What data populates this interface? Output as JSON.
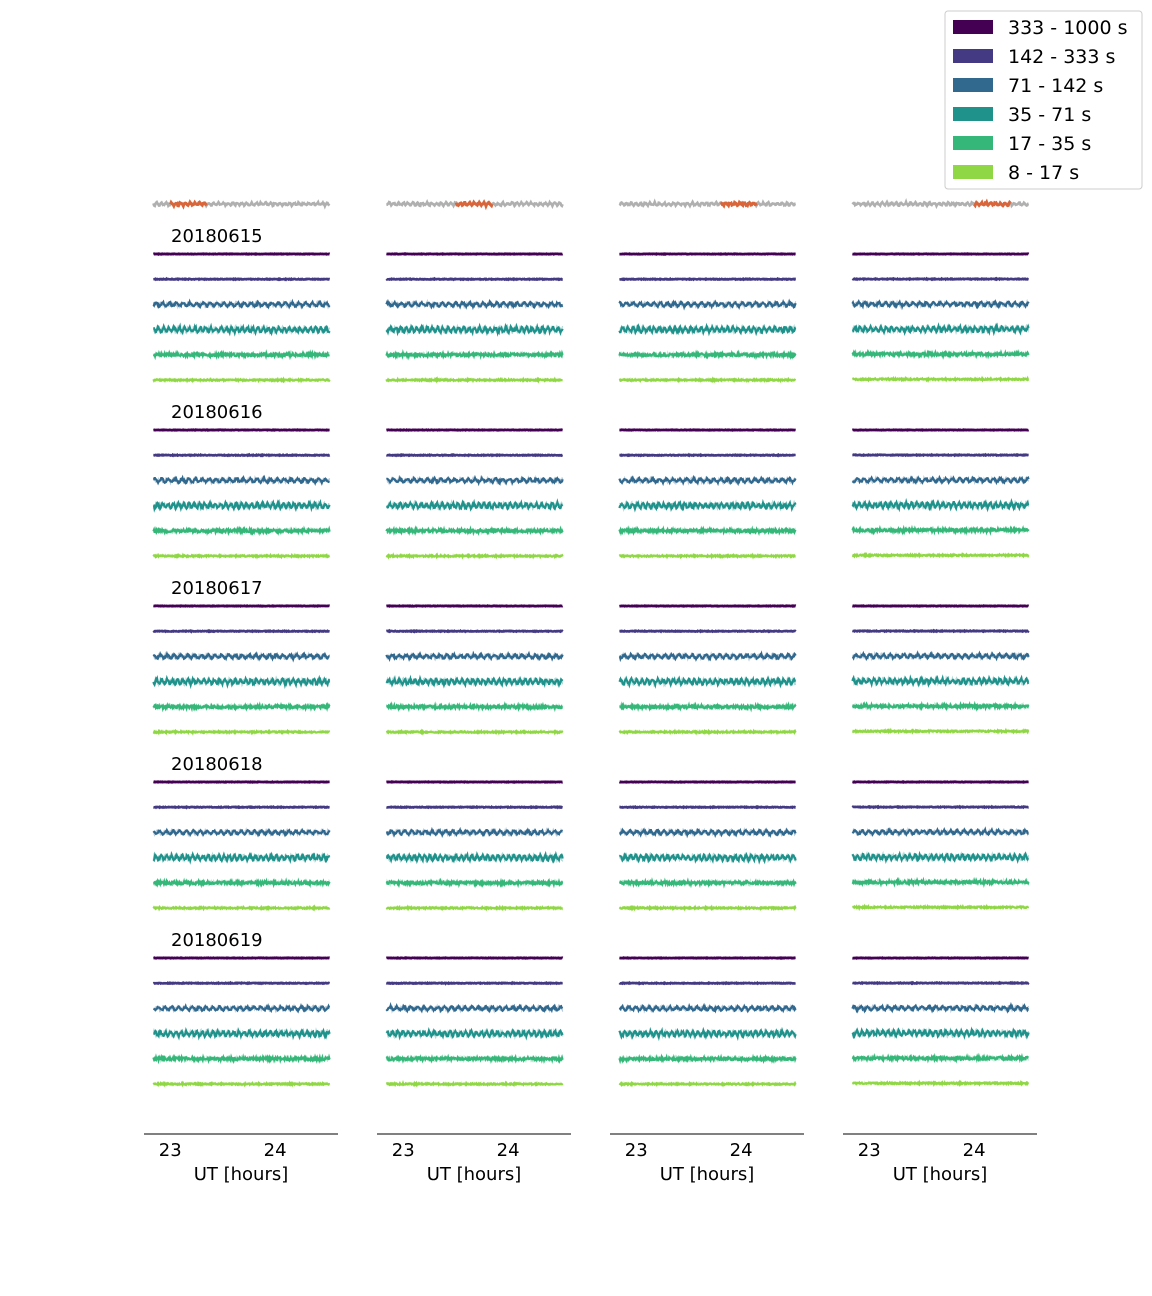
{
  "chart_data": {
    "type": "line",
    "title": "",
    "xlabel": "UT [hours]",
    "xlim": [
      22.75,
      24.6
    ],
    "xticks": [
      23,
      24
    ],
    "xtick_labels": [
      "23",
      "24"
    ],
    "n_columns": 4,
    "reference_trace": {
      "color_base": "#b0b0b0",
      "color_highlight": "#d9653b",
      "highlight_windows": [
        [
          23.0,
          23.35
        ],
        [
          23.5,
          23.85
        ],
        [
          23.8,
          24.15
        ],
        [
          24.0,
          24.35
        ]
      ]
    },
    "dates": [
      "20180615",
      "20180616",
      "20180617",
      "20180618",
      "20180619"
    ],
    "bands": [
      {
        "label": "333 - 1000 s",
        "color": "#440154",
        "amplitude": 0.4,
        "period_h": 0
      },
      {
        "label": "142 - 333 s",
        "color": "#433a83",
        "amplitude": 0.8,
        "period_h": 0
      },
      {
        "label": "71 - 142 s",
        "color": "#31688e",
        "amplitude": 2.0,
        "period_h": 0.065
      },
      {
        "label": "35 - 71 s",
        "color": "#20928c",
        "amplitude": 2.6,
        "period_h": 0.05
      },
      {
        "label": "17 - 35 s",
        "color": "#35b779",
        "amplitude": 3.2,
        "period_h": 0
      },
      {
        "label": "8 - 17 s",
        "color": "#8fd744",
        "amplitude": 1.6,
        "period_h": 0
      }
    ],
    "legend": {
      "position": "top-right",
      "entries": [
        "333 - 1000 s",
        "142 - 333 s",
        "71 - 142 s",
        "35 - 71 s",
        "17 - 35 s",
        "8 - 17 s"
      ]
    }
  }
}
